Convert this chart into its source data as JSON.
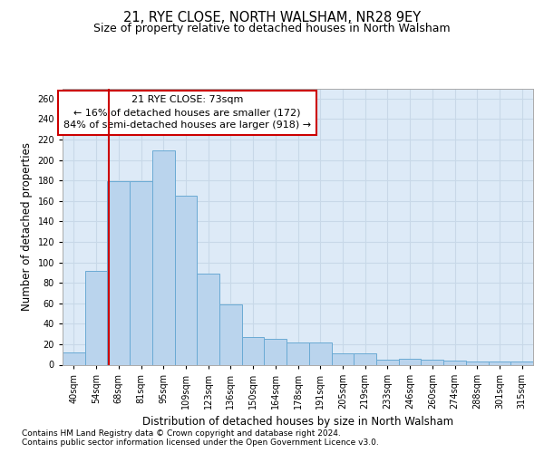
{
  "title_line1": "21, RYE CLOSE, NORTH WALSHAM, NR28 9EY",
  "title_line2": "Size of property relative to detached houses in North Walsham",
  "xlabel": "Distribution of detached houses by size in North Walsham",
  "ylabel": "Number of detached properties",
  "categories": [
    "40sqm",
    "54sqm",
    "68sqm",
    "81sqm",
    "95sqm",
    "109sqm",
    "123sqm",
    "136sqm",
    "150sqm",
    "164sqm",
    "178sqm",
    "191sqm",
    "205sqm",
    "219sqm",
    "233sqm",
    "246sqm",
    "260sqm",
    "274sqm",
    "288sqm",
    "301sqm",
    "315sqm"
  ],
  "values": [
    12,
    92,
    179,
    179,
    209,
    165,
    89,
    59,
    27,
    25,
    22,
    22,
    11,
    11,
    5,
    6,
    5,
    4,
    3,
    3,
    3
  ],
  "bar_color": "#bad4ed",
  "bar_edge_color": "#6aaad4",
  "vline_x_index": 1.55,
  "vline_color": "#cc0000",
  "annotation_text": "21 RYE CLOSE: 73sqm\n← 16% of detached houses are smaller (172)\n84% of semi-detached houses are larger (918) →",
  "annotation_box_color": "#ffffff",
  "annotation_box_edge": "#cc0000",
  "ylim": [
    0,
    270
  ],
  "yticks": [
    0,
    20,
    40,
    60,
    80,
    100,
    120,
    140,
    160,
    180,
    200,
    220,
    240,
    260
  ],
  "grid_color": "#c8d8e8",
  "bg_color": "#ddeaf7",
  "footer_line1": "Contains HM Land Registry data © Crown copyright and database right 2024.",
  "footer_line2": "Contains public sector information licensed under the Open Government Licence v3.0.",
  "title_fontsize": 10.5,
  "subtitle_fontsize": 9,
  "axis_label_fontsize": 8.5,
  "tick_fontsize": 7,
  "annotation_fontsize": 8,
  "footer_fontsize": 6.5
}
